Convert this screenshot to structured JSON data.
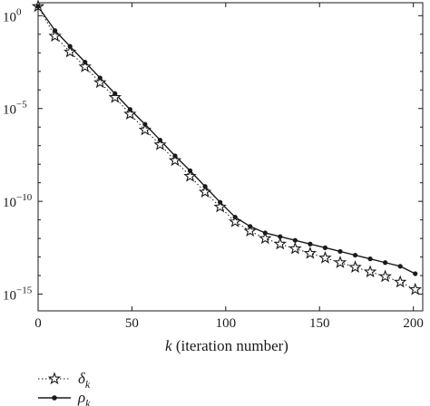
{
  "chart_data": {
    "type": "line",
    "xlabel_var": "k",
    "xlabel_rest": " (iteration number)",
    "ylabel": "",
    "y_scale": "log",
    "xlim": [
      0,
      205
    ],
    "ylim_exp": [
      -15.9,
      0.7
    ],
    "x_ticks": [
      0,
      50,
      100,
      150,
      200
    ],
    "y_ticks": [
      {
        "base": "10",
        "exp": "0",
        "value": 0
      },
      {
        "base": "10",
        "exp": "−5",
        "value": -5
      },
      {
        "base": "10",
        "exp": "−10",
        "value": -10
      },
      {
        "base": "10",
        "exp": "−15",
        "value": -15
      }
    ],
    "grid": false,
    "legend_position": "below plot, left",
    "x": [
      0,
      9,
      17,
      25,
      33,
      41,
      49,
      57,
      65,
      73,
      81,
      89,
      97,
      105,
      113,
      121,
      129,
      137,
      145,
      153,
      161,
      169,
      177,
      185,
      193,
      201
    ],
    "series": [
      {
        "name_base": "δ",
        "name_sub": "k",
        "style": "dotted-star",
        "log10_values": [
          0.5,
          -1.1,
          -1.95,
          -2.75,
          -3.6,
          -4.4,
          -5.3,
          -6.15,
          -6.95,
          -7.8,
          -8.65,
          -9.5,
          -10.3,
          -11.1,
          -11.6,
          -12.0,
          -12.3,
          -12.55,
          -12.8,
          -13.05,
          -13.3,
          -13.55,
          -13.8,
          -14.05,
          -14.35,
          -14.75
        ],
        "color": "#1a1a1a"
      },
      {
        "name_base": "ρ",
        "name_sub": "k",
        "style": "solid-dot",
        "log10_values": [
          0.5,
          -0.8,
          -1.65,
          -2.5,
          -3.35,
          -4.2,
          -5.05,
          -5.85,
          -6.7,
          -7.55,
          -8.35,
          -9.2,
          -10.05,
          -10.85,
          -11.35,
          -11.7,
          -11.9,
          -12.1,
          -12.3,
          -12.5,
          -12.7,
          -12.9,
          -13.1,
          -13.3,
          -13.5,
          -13.9
        ],
        "color": "#1a1a1a"
      }
    ]
  }
}
